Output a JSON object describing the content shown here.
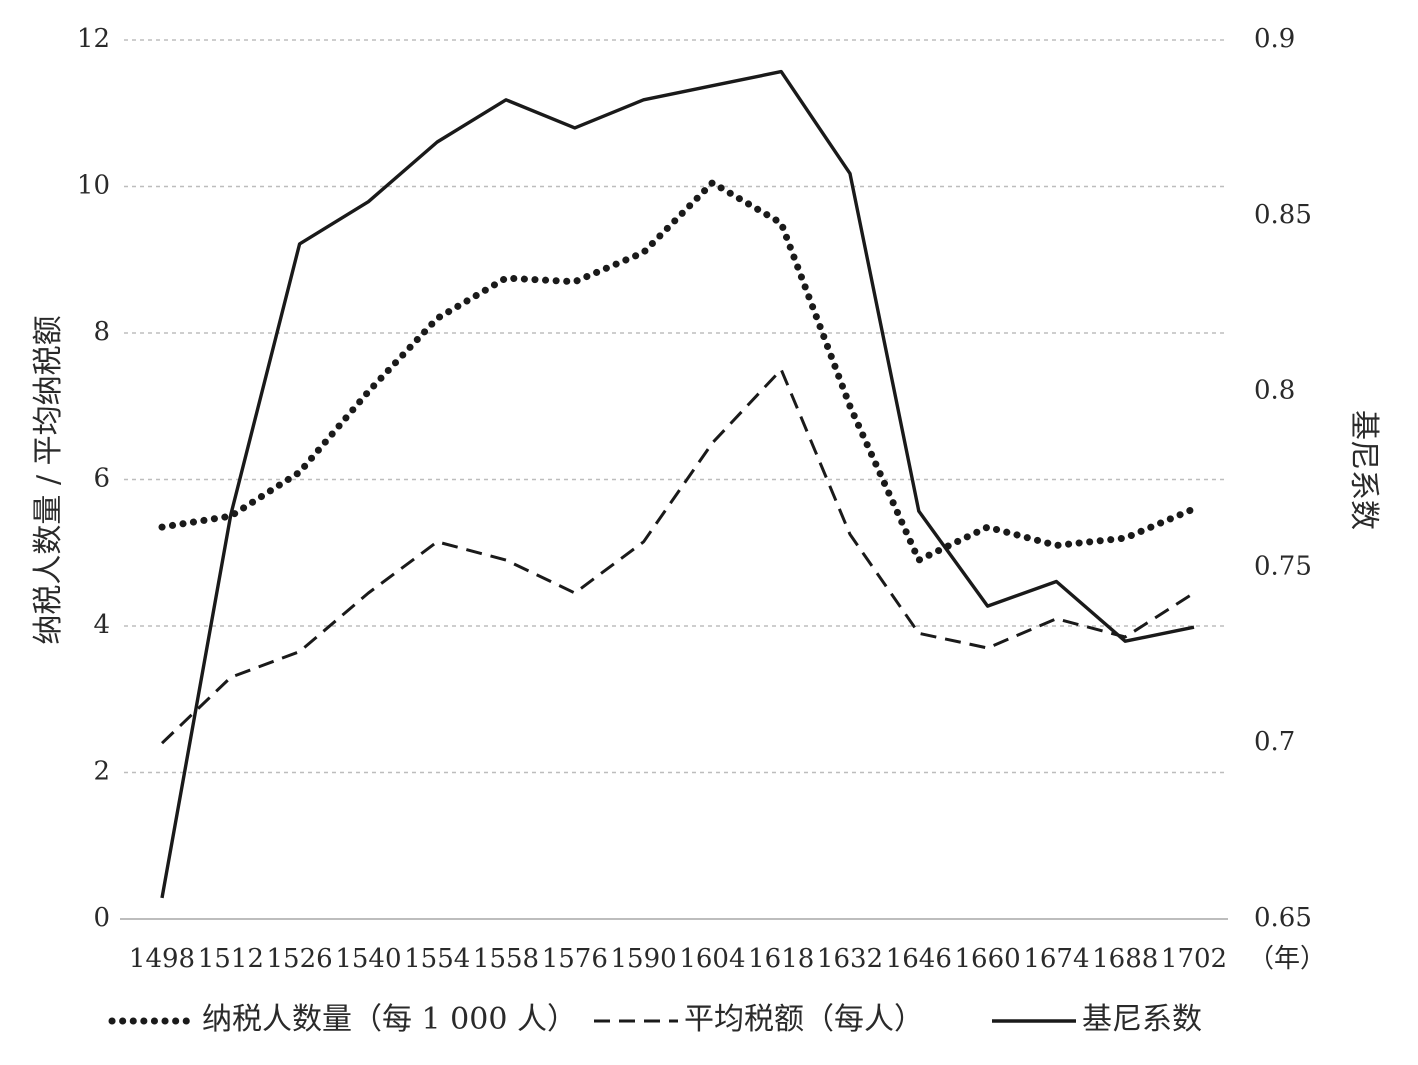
{
  "chart_data": {
    "type": "line",
    "categories": [
      "1498",
      "1512",
      "1526",
      "1540",
      "1554",
      "1558",
      "1576",
      "1590",
      "1604",
      "1618",
      "1632",
      "1646",
      "1660",
      "1674",
      "1688",
      "1702"
    ],
    "x_unit_label": "（年）",
    "y_left": {
      "label": "纳税人数量 / 平均纳税额",
      "ylim": [
        0,
        12
      ],
      "ticks": [
        "0",
        "2",
        "4",
        "6",
        "8",
        "10",
        "12"
      ]
    },
    "y_right": {
      "label": "基尼系数",
      "ylim": [
        0.65,
        0.9
      ],
      "ticks": [
        "0.65",
        "0.7",
        "0.75",
        "0.8",
        "0.85",
        "0.9"
      ]
    },
    "grid": "horizontal dotted",
    "legend_position": "bottom",
    "series": [
      {
        "name": "纳税人数量（每 1 000 人）",
        "axis": "left",
        "style": "dotted",
        "values": [
          5.35,
          5.5,
          6.1,
          7.2,
          8.2,
          8.75,
          8.7,
          9.1,
          10.05,
          9.5,
          7.0,
          4.9,
          5.35,
          5.1,
          5.2,
          5.6
        ]
      },
      {
        "name": "平均税额（每人）",
        "axis": "left",
        "style": "dashed",
        "values": [
          2.4,
          3.3,
          3.65,
          4.45,
          5.15,
          4.9,
          4.45,
          5.15,
          6.5,
          7.5,
          5.25,
          3.9,
          3.7,
          4.1,
          3.85,
          4.45
        ]
      },
      {
        "name": "基尼系数",
        "axis": "right",
        "style": "solid",
        "values": [
          0.656,
          0.765,
          0.842,
          0.854,
          0.871,
          0.883,
          0.875,
          0.883,
          0.887,
          0.891,
          0.862,
          0.766,
          0.739,
          0.746,
          0.729,
          0.733
        ]
      }
    ]
  }
}
